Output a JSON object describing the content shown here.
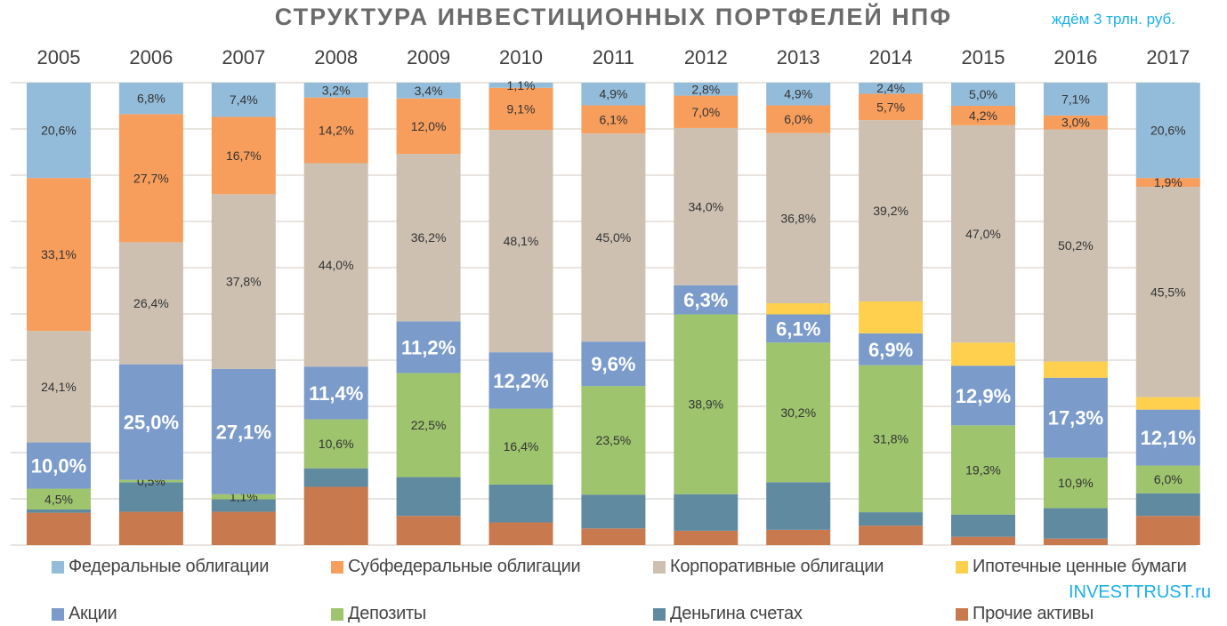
{
  "chart_data": {
    "type": "bar",
    "stacked": true,
    "title": "СТРУКТУРА ИНВЕСТИЦИОННЫХ ПОРТФЕЛЕЙ НПФ",
    "annotation": "ждём 3 трлн. руб.",
    "watermark": "INVESTTRUST.ru",
    "categories": [
      "2005",
      "2006",
      "2007",
      "2008",
      "2009",
      "2010",
      "2011",
      "2012",
      "2013",
      "2014",
      "2015",
      "2016",
      "2017"
    ],
    "ylim": [
      0,
      100
    ],
    "grid": true,
    "legend_position": "bottom",
    "series": [
      {
        "name": "Прочие активы",
        "color": "#c87a4e",
        "values": [
          7.0,
          7.2,
          7.2,
          12.6,
          6.3,
          4.9,
          3.6,
          3.1,
          3.3,
          4.2,
          1.8,
          1.4,
          6.3
        ],
        "labels": [
          null,
          null,
          null,
          null,
          null,
          null,
          null,
          null,
          null,
          null,
          null,
          null,
          null
        ]
      },
      {
        "name": "Деньгина счетах",
        "color": "#5f8aa0",
        "values": [
          0.7,
          6.4,
          2.7,
          4.0,
          8.4,
          8.2,
          7.3,
          7.9,
          10.3,
          2.9,
          4.8,
          6.6,
          4.9
        ],
        "labels": [
          null,
          null,
          null,
          null,
          null,
          null,
          null,
          null,
          null,
          null,
          null,
          null,
          null
        ]
      },
      {
        "name": "Депозиты",
        "color": "#9ec46e",
        "values": [
          4.5,
          0.5,
          1.1,
          10.6,
          22.5,
          16.4,
          23.5,
          38.9,
          30.2,
          31.8,
          19.3,
          10.9,
          6.0
        ],
        "labels": [
          "4,5%",
          "0,5%",
          "1,1%",
          "10,6%",
          "22,5%",
          "16,4%",
          "23,5%",
          "38,9%",
          "30,2%",
          "31,8%",
          "19,3%",
          "10,9%",
          "6,0%"
        ]
      },
      {
        "name": "Акции",
        "color": "#7b9bcb",
        "big_labels": true,
        "values": [
          10.0,
          25.0,
          27.1,
          11.4,
          11.2,
          12.2,
          9.6,
          6.3,
          6.1,
          6.9,
          12.9,
          17.3,
          12.1
        ],
        "labels": [
          "10,0%",
          "25,0%",
          "27,1%",
          "11,4%",
          "11,2%",
          "12,2%",
          "9,6%",
          "6,3%",
          "6,1%",
          "6,9%",
          "12,9%",
          "17,3%",
          "12,1%"
        ]
      },
      {
        "name": "Ипотечные ценные бумаги",
        "color": "#ffd04e",
        "values": [
          0,
          0,
          0,
          0,
          0,
          0,
          0,
          0,
          2.4,
          6.9,
          5.0,
          3.5,
          2.7
        ],
        "labels": [
          null,
          null,
          null,
          null,
          null,
          null,
          null,
          null,
          null,
          null,
          null,
          null,
          null
        ]
      },
      {
        "name": "Корпоративные облигации",
        "color": "#cdc0b1",
        "values": [
          24.1,
          26.4,
          37.8,
          44.0,
          36.2,
          48.1,
          45.0,
          34.0,
          36.8,
          39.2,
          47.0,
          50.2,
          45.5
        ],
        "labels": [
          "24,1%",
          "26,4%",
          "37,8%",
          "44,0%",
          "36,2%",
          "48,1%",
          "45,0%",
          "34,0%",
          "36,8%",
          "39,2%",
          "47,0%",
          "50,2%",
          "45,5%"
        ]
      },
      {
        "name": "Субфедеральные облигации",
        "color": "#f89e5c",
        "values": [
          33.1,
          27.7,
          16.7,
          14.2,
          12.0,
          9.1,
          6.1,
          7.0,
          6.0,
          5.7,
          4.2,
          3.0,
          1.9
        ],
        "labels": [
          "33,1%",
          "27,7%",
          "16,7%",
          "14,2%",
          "12,0%",
          "9,1%",
          "6,1%",
          "7,0%",
          "6,0%",
          "5,7%",
          "4,2%",
          "3,0%",
          "1,9%"
        ]
      },
      {
        "name": "Федеральные облигации",
        "color": "#93bcdb",
        "values": [
          20.6,
          6.8,
          7.4,
          3.2,
          3.4,
          1.1,
          4.9,
          2.8,
          4.9,
          2.4,
          5.0,
          7.1,
          20.6
        ],
        "labels": [
          "20,6%",
          "6,8%",
          "7,4%",
          "3,2%",
          "3,4%",
          "1,1%",
          "4,9%",
          "2,8%",
          "4,9%",
          "2,4%",
          "5,0%",
          "7,1%",
          "20,6%"
        ]
      }
    ],
    "legend_order": [
      7,
      6,
      5,
      4,
      3,
      2,
      1,
      0
    ]
  }
}
